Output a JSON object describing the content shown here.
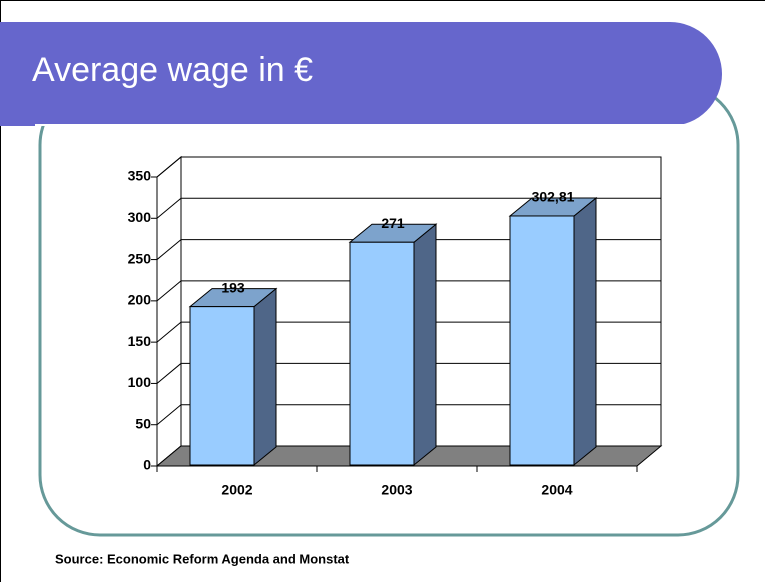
{
  "chart_data": {
    "type": "bar3d",
    "title": "Average wage in €",
    "categories": [
      "2002",
      "2003",
      "2004"
    ],
    "values": [
      193,
      271,
      302.81
    ],
    "value_labels": [
      "193",
      "271",
      "302,81"
    ],
    "color": "#99ccff",
    "ylim": [
      0,
      350
    ],
    "yticks": [
      0,
      50,
      100,
      150,
      200,
      250,
      300,
      350
    ],
    "grid": true,
    "source": "Source: Economic Reform Agenda and Monstat"
  }
}
